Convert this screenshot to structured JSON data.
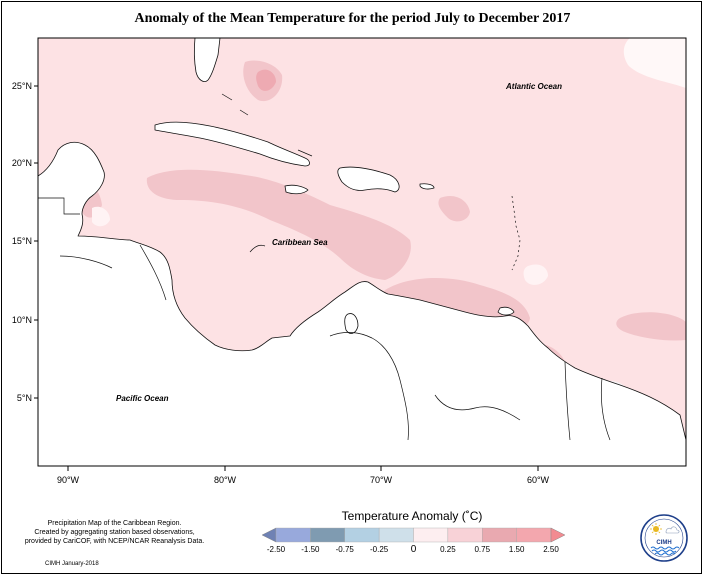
{
  "title": "Anomaly of the Mean Temperature for the period July to December 2017",
  "lat_labels": [
    "25°N",
    "20°N",
    "15°N",
    "10°N",
    "5°N"
  ],
  "lon_labels": [
    "90°W",
    "80°W",
    "70°W",
    "60°W"
  ],
  "region_labels": {
    "atlantic": "Atlantic Ocean",
    "caribbean": "Caribbean Sea",
    "pacific": "Pacific Ocean"
  },
  "legend": {
    "title": "Temperature Anomaly (˚C)",
    "ticks": [
      "-2.50",
      "-1.50",
      "-0.75",
      "-0.25",
      "0",
      "0.25",
      "0.75",
      "1.50",
      "2.50"
    ],
    "colors": [
      "#6f82b4",
      "#98a9dc",
      "#7f9bb1",
      "#b3d0e3",
      "#cfe0ea",
      "#fdeef0",
      "#f8d2d7",
      "#e9a9b0",
      "#f3a7ae",
      "#f28b91"
    ]
  },
  "credit": {
    "line1": "Precipitation Map of the Caribbean Region.",
    "line2": "Created by aggregating station based observations,",
    "line3": "provided by CariCOF, with NCEP/NCAR Reanalysis Data.",
    "line4": "CIMH January-2018"
  },
  "logo": {
    "text": "CIMH",
    "icons": [
      "sun-icon",
      "cloud-icon",
      "waves-icon"
    ]
  }
}
